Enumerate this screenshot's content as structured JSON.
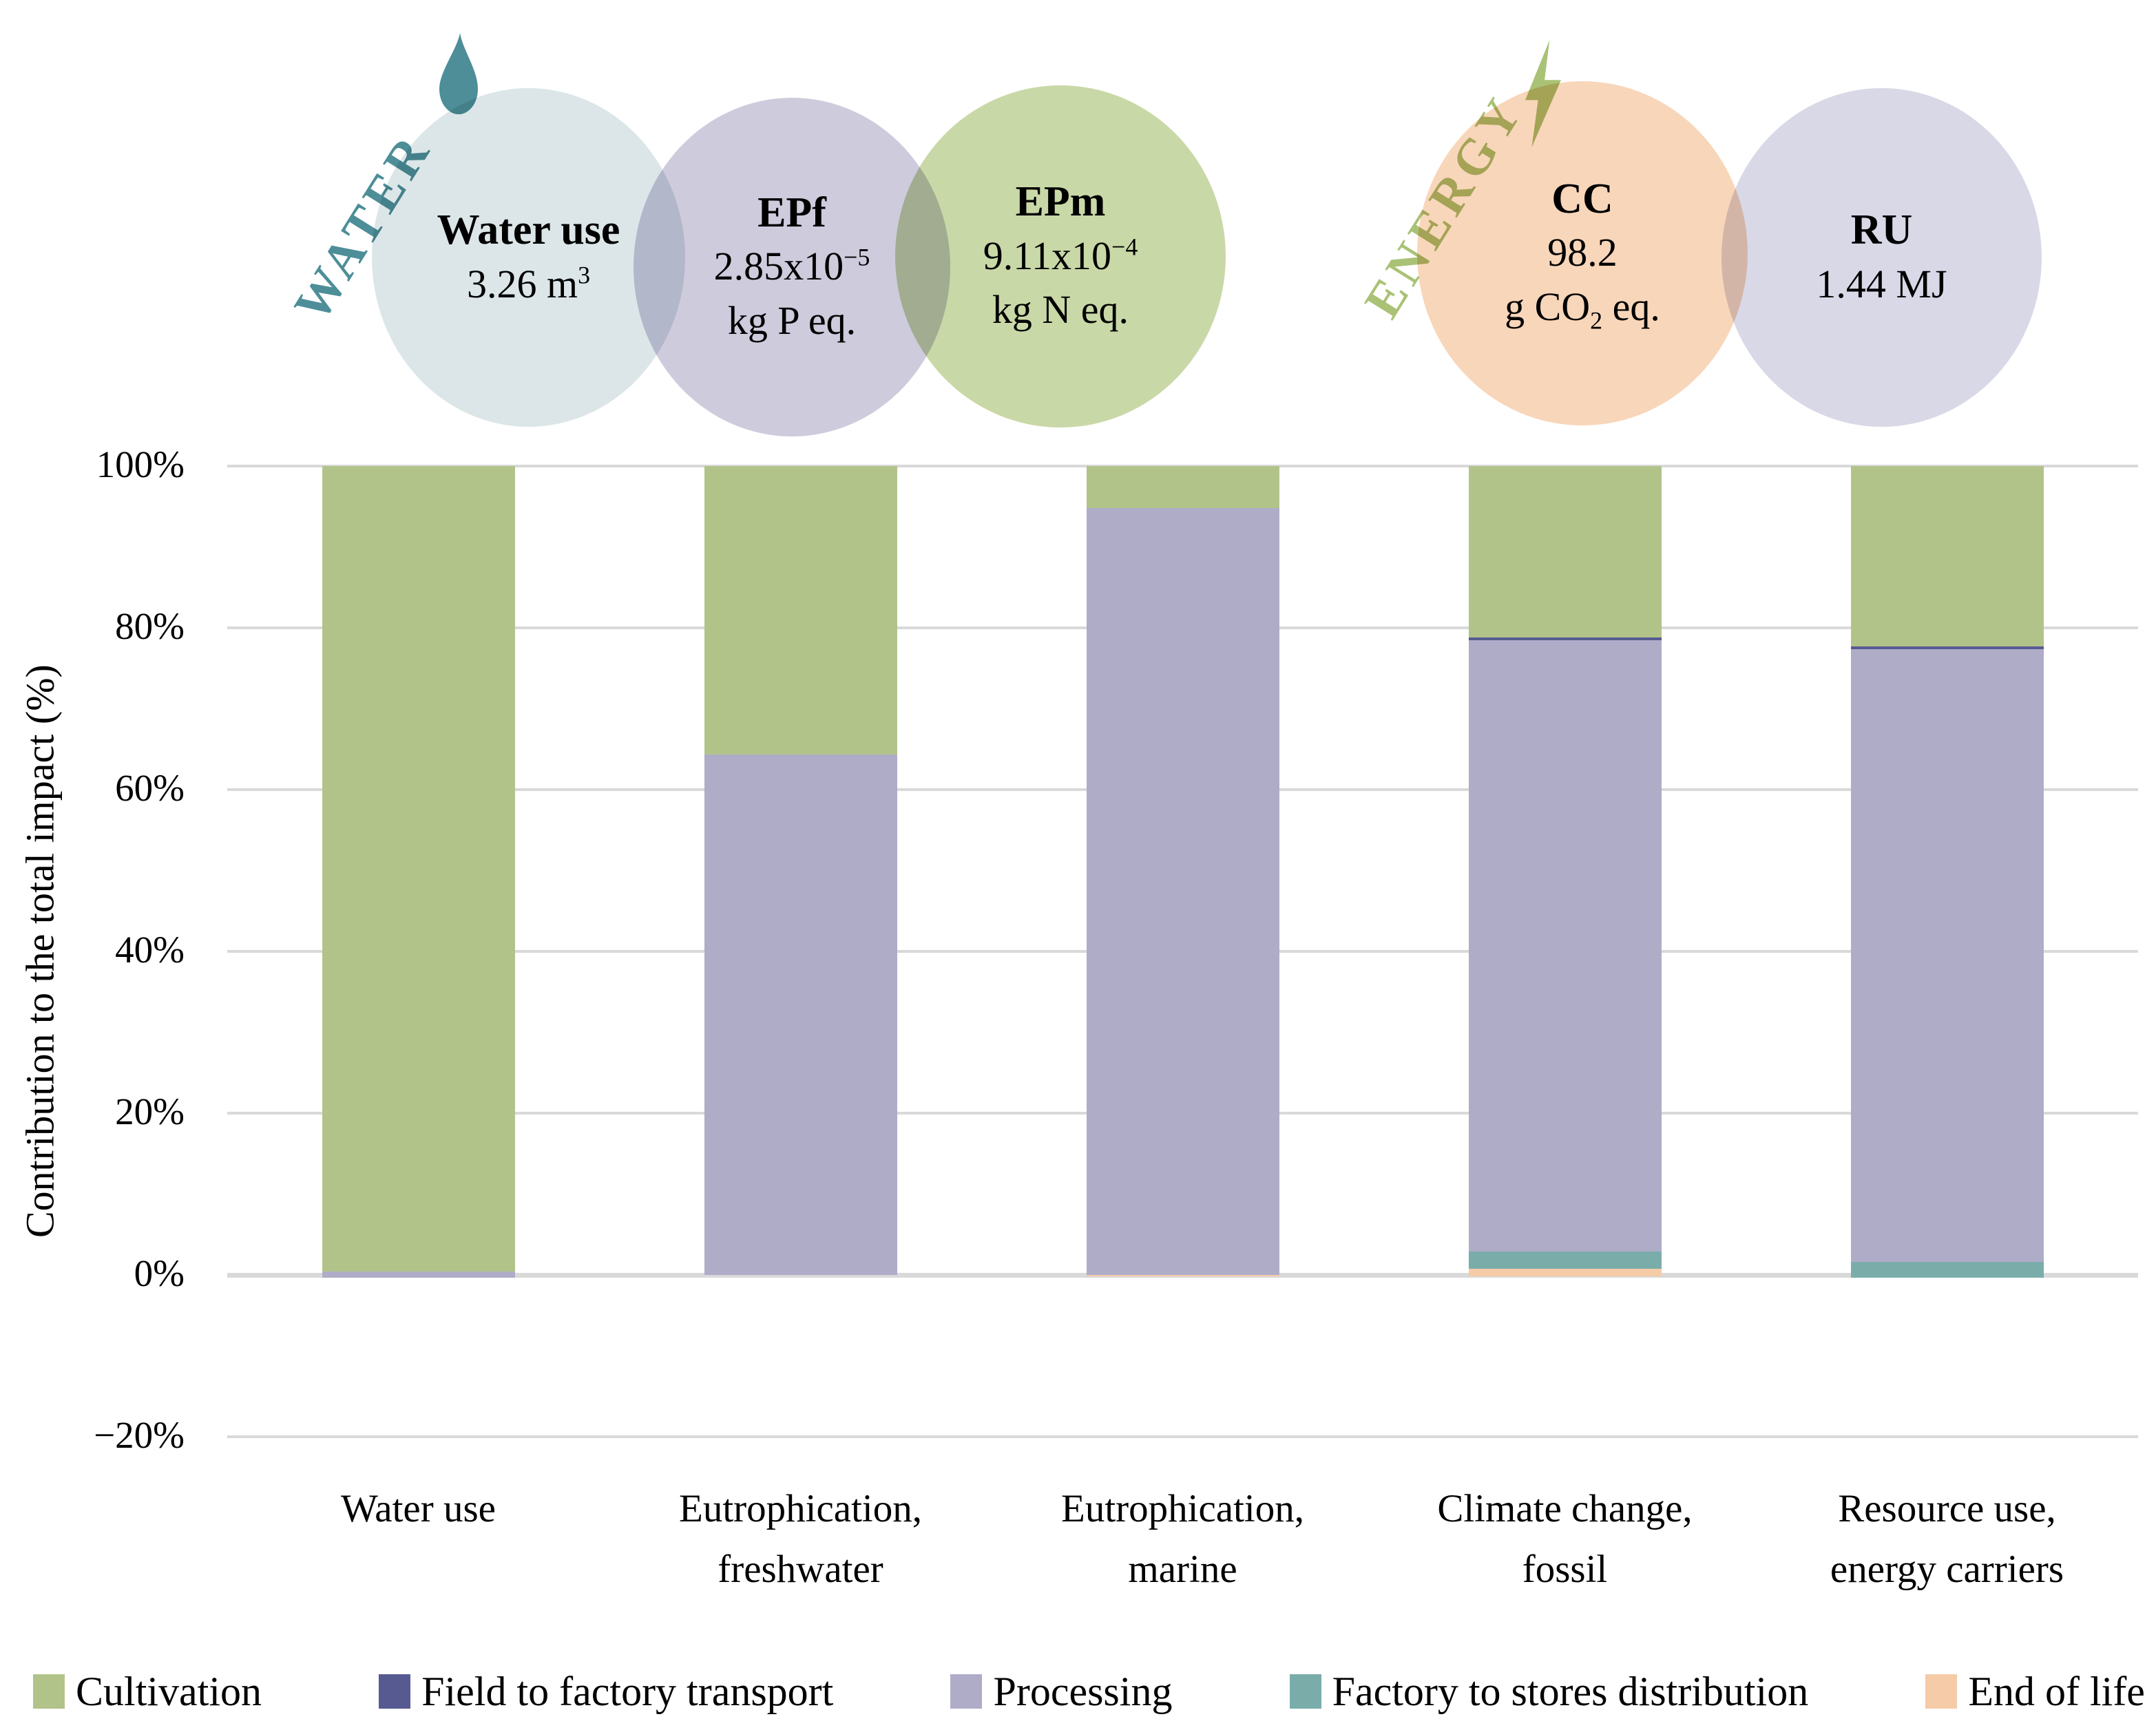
{
  "banner": {
    "water": {
      "label": "WATER",
      "color": "#4d8e98"
    },
    "energy": {
      "label": "ENERGY",
      "color": "#a9c275"
    },
    "circles": [
      {
        "name": "water-use",
        "title": "Water use",
        "color": "#dce6e8",
        "lines": [
          [
            {
              "t": "text",
              "v": "3.26 m"
            },
            {
              "t": "sup",
              "v": "3"
            }
          ]
        ]
      },
      {
        "name": "epf",
        "title": "EPf",
        "color": "#cecbdd",
        "lines": [
          [
            {
              "t": "text",
              "v": "2.85x10"
            },
            {
              "t": "sup",
              "v": "−5"
            }
          ],
          [
            {
              "t": "text",
              "v": "kg P eq."
            }
          ]
        ]
      },
      {
        "name": "epm",
        "title": "EPm",
        "color": "#c9d8a7",
        "lines": [
          [
            {
              "t": "text",
              "v": "9.11x10"
            },
            {
              "t": "sup",
              "v": "−4"
            }
          ],
          [
            {
              "t": "text",
              "v": "kg N eq."
            }
          ]
        ]
      },
      {
        "name": "cc",
        "title": "CC",
        "color": "#f8d6ba",
        "lines": [
          [
            {
              "t": "text",
              "v": "98.2"
            }
          ],
          [
            {
              "t": "text",
              "v": "g CO"
            },
            {
              "t": "sub",
              "v": "2"
            },
            {
              "t": "text",
              "v": " eq."
            }
          ]
        ]
      },
      {
        "name": "ru",
        "title": "RU",
        "color": "#d9d8e7",
        "lines": [
          [
            {
              "t": "text",
              "v": "1.44 MJ"
            }
          ]
        ]
      }
    ]
  },
  "chart_data": {
    "type": "bar",
    "stacked": true,
    "ylabel": "Contribution to the total impact (%)",
    "ylim": [
      -20,
      100
    ],
    "grid": true,
    "yticks": [
      {
        "value": 100,
        "label": "100%"
      },
      {
        "value": 80,
        "label": "80%"
      },
      {
        "value": 60,
        "label": "60%"
      },
      {
        "value": 40,
        "label": "40%"
      },
      {
        "value": 20,
        "label": "20%"
      },
      {
        "value": 0,
        "label": "0%"
      },
      {
        "value": -20,
        "label": "−20%"
      }
    ],
    "series": [
      {
        "name": "Cultivation",
        "color": "#b2c38a"
      },
      {
        "name": "Field to factory transport",
        "color": "#565a91"
      },
      {
        "name": "Processing",
        "color": "#afacc8"
      },
      {
        "name": "Factory to stores distribution",
        "color": "#7aadaa"
      },
      {
        "name": "End of life",
        "color": "#f6cba8"
      }
    ],
    "categories": [
      "Water use",
      "Eutrophication, freshwater",
      "Eutrophication, marine",
      "Climate change, fossil",
      "Resource use, energy carriers"
    ],
    "bars": [
      {
        "label_lines": [
          "Water use"
        ],
        "segments": [
          {
            "series": "Processing",
            "from": -0.3,
            "to": 0.4
          },
          {
            "series": "Cultivation",
            "from": 0.4,
            "to": 100
          }
        ]
      },
      {
        "label_lines": [
          "Eutrophication,",
          "freshwater"
        ],
        "segments": [
          {
            "series": "Processing",
            "from": 0,
            "to": 64.3
          },
          {
            "series": "Cultivation",
            "from": 64.3,
            "to": 100
          }
        ]
      },
      {
        "label_lines": [
          "Eutrophication,",
          "marine"
        ],
        "segments": [
          {
            "series": "End of life",
            "from": -0.2,
            "to": 0
          },
          {
            "series": "Processing",
            "from": 0,
            "to": 94.8
          },
          {
            "series": "Cultivation",
            "from": 94.8,
            "to": 100
          }
        ]
      },
      {
        "label_lines": [
          "Climate change,",
          "fossil"
        ],
        "segments": [
          {
            "series": "End of life",
            "from": -0.2,
            "to": 0.8
          },
          {
            "series": "Factory to stores distribution",
            "from": 0.8,
            "to": 2.9
          },
          {
            "series": "Processing",
            "from": 2.9,
            "to": 78.5
          },
          {
            "series": "Field to factory transport",
            "from": 78.5,
            "to": 78.8
          },
          {
            "series": "Cultivation",
            "from": 78.8,
            "to": 100
          }
        ]
      },
      {
        "label_lines": [
          "Resource use,",
          "energy carriers"
        ],
        "segments": [
          {
            "series": "Factory to stores distribution",
            "from": -0.3,
            "to": 1.6
          },
          {
            "series": "Processing",
            "from": 1.6,
            "to": 77.4
          },
          {
            "series": "Field to factory transport",
            "from": 77.4,
            "to": 77.7
          },
          {
            "series": "Cultivation",
            "from": 77.7,
            "to": 100
          }
        ]
      }
    ],
    "legend": {
      "position": "bottom",
      "items": [
        "Cultivation",
        "Field to factory transport",
        "Processing",
        "Factory to stores distribution",
        "End of life"
      ]
    }
  }
}
